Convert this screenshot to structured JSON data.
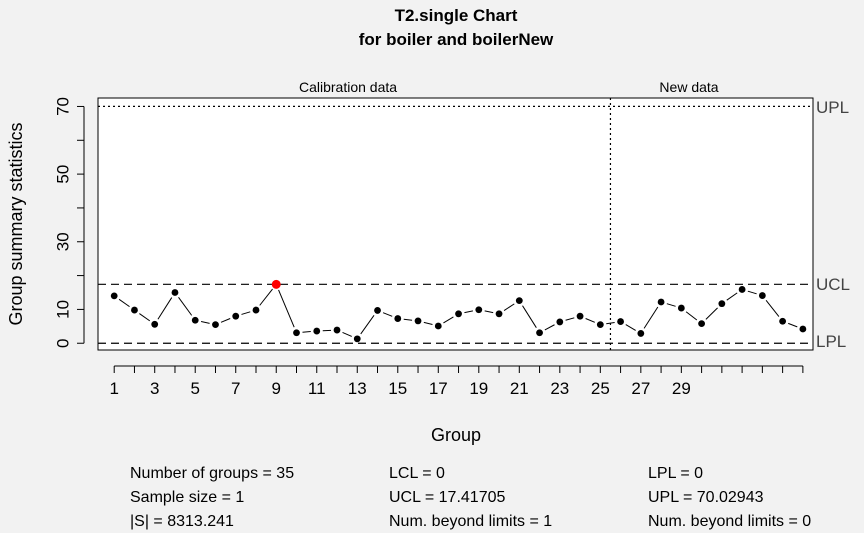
{
  "title": "T2.single Chart",
  "subtitle": "for boiler and boilerNew",
  "section_labels": {
    "calibration": "Calibration data",
    "new": "New data"
  },
  "limit_labels": {
    "upl": "UPL",
    "ucl": "UCL",
    "lcl_lpl": "LPL"
  },
  "footer": {
    "col1": [
      "Number of groups = 35",
      "Sample size = 1",
      "|S| = 8313.241"
    ],
    "col2": [
      "LCL = 0",
      "UCL = 17.41705",
      "Num. beyond limits = 1"
    ],
    "col3": [
      "LPL = 0",
      "UPL = 70.02943",
      "Num. beyond limits = 0"
    ]
  },
  "colors": {
    "point": "#000000",
    "violation": "#ff0000",
    "background": "#f2f2f2",
    "plot_bg": "#ffffff"
  },
  "chart_data": {
    "type": "line",
    "title": "T2.single Chart",
    "subtitle": "for boiler and boilerNew",
    "xlabel": "Group",
    "ylabel": "Group summary statistics",
    "x_tick_labels": [
      "1",
      "3",
      "5",
      "7",
      "9",
      "11",
      "13",
      "15",
      "17",
      "19",
      "21",
      "23",
      "25",
      "27",
      "29"
    ],
    "y_tick_labels": [
      "0",
      "10",
      "30",
      "50",
      "70"
    ],
    "ylim": [
      -2,
      72.5
    ],
    "xlim": [
      0.2,
      35.5
    ],
    "calibration_groups": 25,
    "limits": {
      "UPL": 70.02943,
      "UCL": 17.41705,
      "LCL": 0,
      "LPL": 0
    },
    "values": [
      14.0,
      9.8,
      5.6,
      15.0,
      6.8,
      5.5,
      8.0,
      9.8,
      17.4,
      3.1,
      3.6,
      3.9,
      1.3,
      9.7,
      7.3,
      6.6,
      5.1,
      8.7,
      9.9,
      8.7,
      12.6,
      3.1,
      6.3,
      8.0,
      5.5,
      6.4,
      2.9,
      12.2,
      10.4,
      5.8,
      11.7,
      15.9,
      14.1,
      6.5,
      4.2
    ],
    "violations": [
      9
    ]
  }
}
